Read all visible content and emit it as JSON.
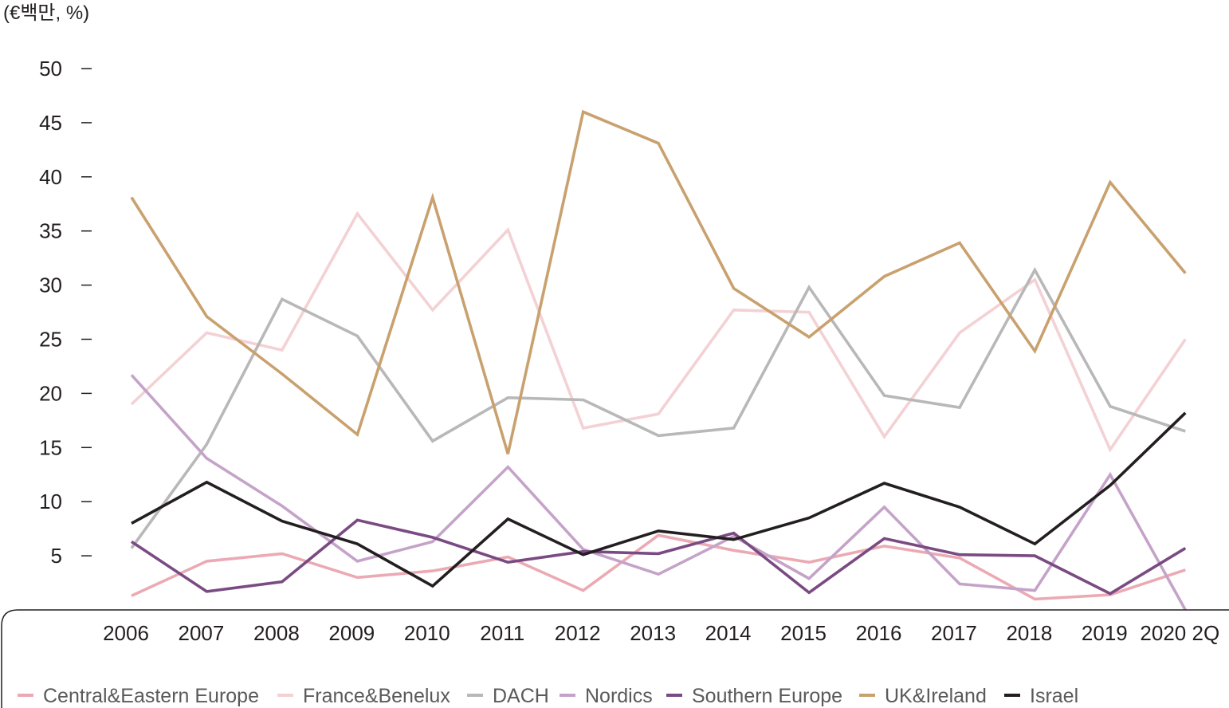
{
  "chart_data": {
    "type": "line",
    "unit_label": "(€백만, %)",
    "xlabel": "",
    "ylabel": "",
    "categories": [
      "2006",
      "2007",
      "2008",
      "2009",
      "2010",
      "2011",
      "2012",
      "2013",
      "2014",
      "2015",
      "2016",
      "2017",
      "2018",
      "2019",
      "2020 2Q"
    ],
    "ylim": [
      0,
      50
    ],
    "yticks": [
      5,
      10,
      15,
      20,
      25,
      30,
      35,
      40,
      45,
      50
    ],
    "legend_position": "bottom",
    "grid": false,
    "series": [
      {
        "name": "Central&Eastern Europe",
        "color": "#ebaab3",
        "values": [
          1.3,
          4.5,
          5.2,
          3.0,
          3.6,
          4.9,
          1.8,
          6.9,
          5.5,
          4.4,
          5.9,
          4.8,
          1.0,
          1.4,
          3.7
        ]
      },
      {
        "name": "France&Benelux",
        "color": "#f3d1d4",
        "values": [
          19.0,
          25.6,
          24.0,
          36.6,
          27.7,
          35.1,
          16.8,
          18.1,
          27.7,
          27.5,
          16.0,
          25.6,
          30.5,
          14.8,
          25.0
        ]
      },
      {
        "name": "DACH",
        "color": "#b9b8b8",
        "values": [
          5.7,
          15.3,
          28.7,
          25.3,
          15.6,
          19.6,
          19.4,
          16.1,
          16.8,
          29.8,
          19.8,
          18.7,
          31.4,
          18.8,
          16.5
        ]
      },
      {
        "name": "Nordics",
        "color": "#c5a3c9",
        "values": [
          21.7,
          14.0,
          9.6,
          4.5,
          6.3,
          13.2,
          5.6,
          3.3,
          6.8,
          2.9,
          9.5,
          2.4,
          1.8,
          12.5,
          0.0
        ]
      },
      {
        "name": "Southern Europe",
        "color": "#7a4b82",
        "values": [
          6.3,
          1.7,
          2.6,
          8.3,
          6.7,
          4.4,
          5.4,
          5.2,
          7.1,
          1.6,
          6.6,
          5.1,
          5.0,
          1.5,
          5.7
        ]
      },
      {
        "name": "UK&Ireland",
        "color": "#c9a16e",
        "values": [
          38.1,
          27.1,
          21.8,
          16.2,
          38.1,
          14.4,
          46.0,
          43.1,
          29.7,
          25.2,
          30.8,
          33.9,
          23.9,
          39.5,
          31.1
        ]
      },
      {
        "name": "Israel",
        "color": "#231f20",
        "values": [
          8.0,
          11.8,
          8.2,
          6.1,
          2.2,
          8.4,
          5.1,
          7.3,
          6.5,
          8.5,
          11.7,
          9.5,
          6.1,
          11.5,
          18.2
        ]
      }
    ]
  }
}
